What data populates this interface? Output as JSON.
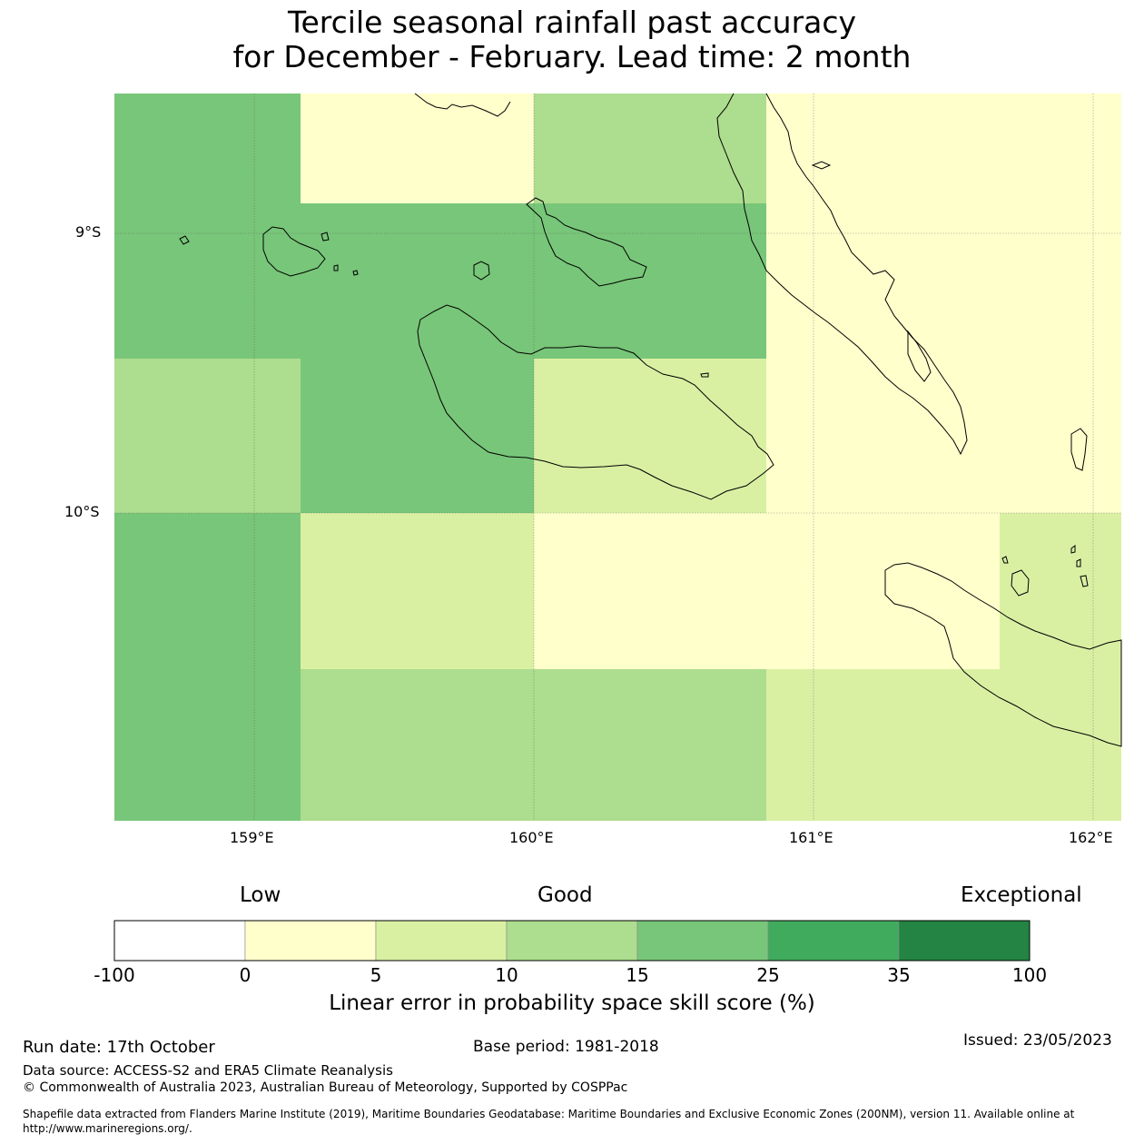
{
  "title": {
    "line1": "Tercile seasonal rainfall past accuracy",
    "line2": "for December - February. Lead time: 2 month"
  },
  "map": {
    "lat_labels": [
      "9°S",
      "10°S"
    ],
    "lon_labels": [
      "159°E",
      "160°E",
      "161°E",
      "162°E"
    ],
    "cells": [
      {
        "lon": [
          158.5,
          159.17
        ],
        "lat": [
          8.53,
          9.0
        ],
        "category": "15-25"
      },
      {
        "lon": [
          159.17,
          160.0
        ],
        "lat": [
          8.53,
          8.92
        ],
        "category": "0-5"
      },
      {
        "lon": [
          160.0,
          160.83
        ],
        "lat": [
          8.53,
          8.92
        ],
        "category": "10-15"
      },
      {
        "lon": [
          160.83,
          162.1
        ],
        "lat": [
          8.53,
          10.0
        ],
        "category": "0-5"
      },
      {
        "lon": [
          159.17,
          160.83
        ],
        "lat": [
          8.92,
          9.45
        ],
        "category": "15-25"
      },
      {
        "lon": [
          158.5,
          159.17
        ],
        "lat": [
          9.0,
          9.45
        ],
        "category": "15-25"
      },
      {
        "lon": [
          158.5,
          159.17
        ],
        "lat": [
          9.45,
          10.0
        ],
        "category": "10-15"
      },
      {
        "lon": [
          159.17,
          160.0
        ],
        "lat": [
          9.45,
          10.0
        ],
        "category": "15-25"
      },
      {
        "lon": [
          160.0,
          160.83
        ],
        "lat": [
          9.45,
          10.0
        ],
        "category": "5-10"
      },
      {
        "lon": [
          158.5,
          159.17
        ],
        "lat": [
          10.0,
          11.1
        ],
        "category": "15-25"
      },
      {
        "lon": [
          159.17,
          160.0
        ],
        "lat": [
          10.0,
          10.56
        ],
        "category": "5-10"
      },
      {
        "lon": [
          160.0,
          161.67
        ],
        "lat": [
          10.0,
          10.56
        ],
        "category": "0-5"
      },
      {
        "lon": [
          161.67,
          162.1
        ],
        "lat": [
          10.0,
          10.56
        ],
        "category": "5-10"
      },
      {
        "lon": [
          159.17,
          160.83
        ],
        "lat": [
          10.56,
          11.1
        ],
        "category": "10-15"
      },
      {
        "lon": [
          160.83,
          162.1
        ],
        "lat": [
          10.56,
          11.1
        ],
        "category": "5-10"
      }
    ]
  },
  "legend": {
    "low_label": "Low",
    "good_label": "Good",
    "exceptional_label": "Exceptional",
    "ticks": [
      "-100",
      "0",
      "5",
      "10",
      "15",
      "25",
      "35",
      "100"
    ],
    "colors": [
      "#ffffff",
      "#ffffcc",
      "#d9f0a3",
      "#addd8e",
      "#78c679",
      "#41ab5d",
      "#238443"
    ],
    "title": "Linear error in probability space skill score (%)"
  },
  "footer": {
    "run_date": "Run date: 17th October",
    "base_period": "Base period: 1981-2018",
    "issued": "Issued: 23/05/2023",
    "data_source": "Data source: ACCESS-S2 and ERA5 Climate Reanalysis",
    "copyright": "© Commonwealth of Australia 2023, Australian Bureau of Meteorology, Supported by COSPPac",
    "shapefile_line1": "Shapefile data extracted from Flanders Marine Institute (2019), Maritime Boundaries Geodatabase: Maritime Boundaries and Exclusive Economic Zones (200NM), version 11. Available online at",
    "shapefile_line2": "http://www.marineregions.org/."
  }
}
